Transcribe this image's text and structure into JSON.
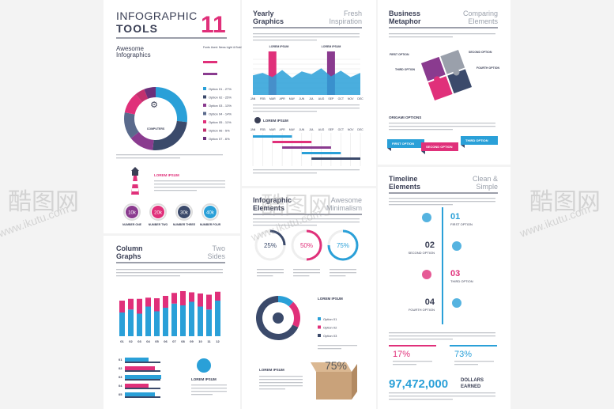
{
  "watermark": {
    "brand": "酷图网",
    "url": "www.ikutu.com"
  },
  "tools": {
    "title1": "INFOGRAPHIC",
    "title2": "TOOLS",
    "number": "11",
    "subtitle1": "Awesome",
    "subtitle2": "Infographics",
    "fonts": "Fonts Used: News Light & Bold",
    "donut_center": "COMPUTERS",
    "options": [
      {
        "label": "Option 01 - 27%",
        "value": 27,
        "color": "#2aa0d8"
      },
      {
        "label": "Option 02 - 25%",
        "value": 25,
        "color": "#3b4a6b"
      },
      {
        "label": "Option 03 - 13%",
        "value": 13,
        "color": "#8a3b8f"
      },
      {
        "label": "Option 04 - 14%",
        "value": 14,
        "color": "#5a6a8c"
      },
      {
        "label": "Option 05 - 11%",
        "value": 11,
        "color": "#e0307a"
      },
      {
        "label": "Option 06 - 5%",
        "value": 5,
        "color": "#c2306e"
      },
      {
        "label": "Option 07 - 6%",
        "value": 6,
        "color": "#6b2f7a"
      }
    ],
    "lighthouse_title": "LOREM IPSUM",
    "counters": [
      {
        "value": "10k",
        "label": "NUMBER ONE",
        "color": "#8a3b8f"
      },
      {
        "value": "20k",
        "label": "NUMBER TWO",
        "color": "#e0307a"
      },
      {
        "value": "30k",
        "label": "NUMBER THREE",
        "color": "#3b4a6b"
      },
      {
        "value": "40k",
        "label": "NUMBER FOUR",
        "color": "#2aa0d8"
      }
    ]
  },
  "column_graphs": {
    "title1": "Column",
    "title2": "Graphs",
    "side1": "Two",
    "side2": "Sides",
    "categories": [
      "01",
      "02",
      "03",
      "04",
      "05",
      "06",
      "07",
      "08",
      "09",
      "10",
      "11",
      "12"
    ],
    "ylim": [
      0,
      100
    ],
    "series": [
      {
        "color": "#2aa0d8",
        "values": [
          40,
          45,
          38,
          50,
          42,
          48,
          55,
          52,
          58,
          50,
          45,
          60
        ]
      },
      {
        "color": "#e0307a",
        "values": [
          20,
          18,
          25,
          15,
          22,
          20,
          18,
          24,
          16,
          22,
          25,
          15
        ]
      }
    ],
    "bars": [
      "01",
      "02",
      "03",
      "04",
      "05"
    ],
    "lorem": "LOREM IPSUM"
  },
  "yearly": {
    "title1": "Yearly",
    "title2": "Graphics",
    "side1": "Fresh",
    "side2": "Inspiration",
    "label_a": "LOREM IPSUM",
    "label_b": "LOREM IPSUM",
    "months": [
      "JAN",
      "FEB",
      "MAR",
      "APR",
      "MAY",
      "JUN",
      "JUL",
      "AUG",
      "SEP",
      "OCT",
      "NOV",
      "DEC"
    ],
    "ylim": [
      0,
      100
    ],
    "values": [
      55,
      62,
      50,
      70,
      48,
      66,
      58,
      75,
      52,
      68,
      50,
      62
    ],
    "color": "#2aa0d8",
    "gantt_title": "LOREM IPSUM"
  },
  "elements": {
    "title1": "Infographic",
    "title2": "Elements",
    "side1": "Awesome",
    "side2": "Minimalism",
    "gauges": [
      {
        "value": 25,
        "label": "25%",
        "color": "#3b4a6b"
      },
      {
        "value": 50,
        "label": "50%",
        "color": "#e0307a"
      },
      {
        "value": 75,
        "label": "75%",
        "color": "#2aa0d8"
      }
    ],
    "donut_title": "LOREM IPSUM",
    "donut_options": [
      {
        "label": "Option 01",
        "color": "#2aa0d8"
      },
      {
        "label": "Option 02",
        "color": "#e0307a"
      },
      {
        "label": "Option 03",
        "color": "#3b4a6b"
      }
    ],
    "box_title": "LOREM IPSUM",
    "box_value": "75%"
  },
  "business": {
    "title1": "Business",
    "title2": "Metaphor",
    "side1": "Comparing",
    "side2": "Elements",
    "first": "FIRST OPTION",
    "second": "SECOND OPTION",
    "third": "THIRD OPTION",
    "fourth": "FOURTH OPTION",
    "origami": "ORIGAMI OPTIONS",
    "ribbons": [
      "FIRST OPTION",
      "SECOND OPTION",
      "THIRD OPTION"
    ]
  },
  "timeline": {
    "title1": "Timeline",
    "title2": "Elements",
    "side1": "Clean &",
    "side2": "Simple",
    "items": [
      {
        "number": "01",
        "label": "FIRST OPTION"
      },
      {
        "number": "02",
        "label": "SECOND OPTION"
      },
      {
        "number": "03",
        "label": "THIRD OPTION"
      },
      {
        "number": "04",
        "label": "FOURTH OPTION"
      }
    ],
    "pct1": "17%",
    "pct2": "73%",
    "amount": "97,472,000",
    "amount_label1": "DOLLARS",
    "amount_label2": "EARNED"
  }
}
